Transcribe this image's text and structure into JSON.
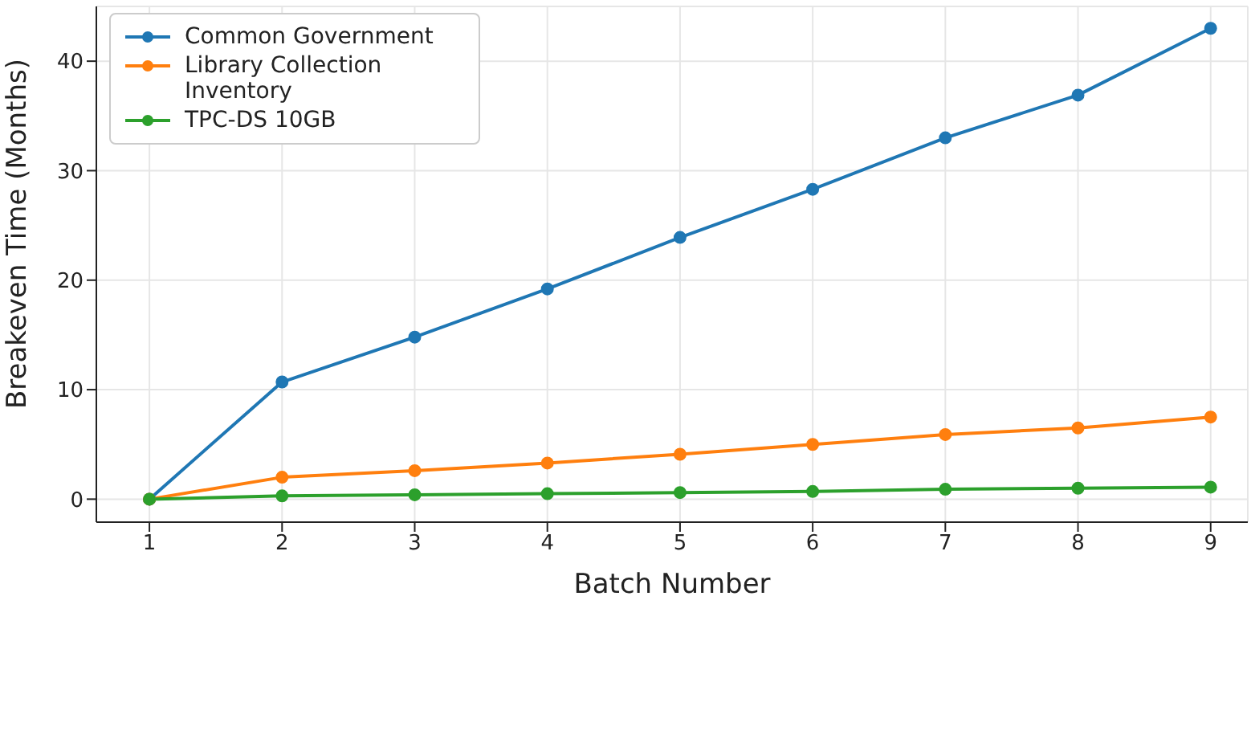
{
  "chart_data": {
    "type": "line",
    "xlabel": "Batch Number",
    "ylabel": "Breakeven Time (Months)",
    "x": [
      1,
      2,
      3,
      4,
      5,
      6,
      7,
      8,
      9
    ],
    "series": [
      {
        "name": "Common Government",
        "color": "#1f77b4",
        "values": [
          0,
          10.7,
          14.8,
          19.2,
          23.9,
          28.3,
          33.0,
          36.9,
          43.0
        ]
      },
      {
        "name": "Library Collection Inventory",
        "color": "#ff7f0e",
        "values": [
          0,
          2.0,
          2.6,
          3.3,
          4.1,
          5.0,
          5.9,
          6.5,
          7.5
        ]
      },
      {
        "name": "TPC-DS 10GB",
        "color": "#2ca02c",
        "values": [
          0,
          0.3,
          0.4,
          0.5,
          0.6,
          0.7,
          0.9,
          1.0,
          1.1
        ]
      }
    ],
    "xlim": [
      0.6,
      9.28
    ],
    "xticks": [
      1,
      2,
      3,
      4,
      5,
      6,
      7,
      8,
      9
    ],
    "ylim": [
      -2.1,
      45
    ],
    "yticks": [
      0,
      10,
      20,
      30,
      40
    ],
    "grid": true,
    "legend": "top left",
    "marker": "circle",
    "line_style": "solid"
  }
}
